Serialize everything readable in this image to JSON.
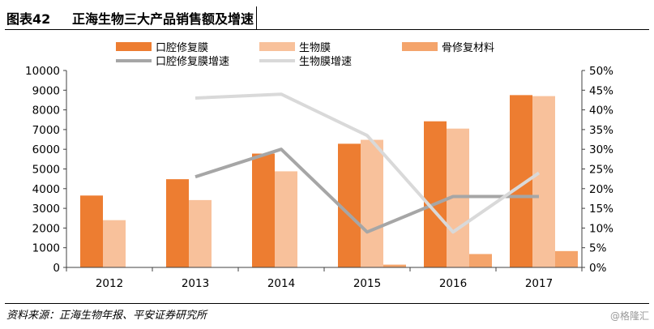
{
  "figure": {
    "number": "图表42",
    "title": "正海生物三大产品销售额及增速",
    "source": "资料来源：正海生物年报、平安证券研究所",
    "watermark": "@格隆汇"
  },
  "colors": {
    "oral_bar": "#ED7D31",
    "bio_bar": "#F8C19B",
    "bone_bar": "#F4A46B",
    "oral_line": "#A6A6A6",
    "bio_line": "#D9D9D9"
  },
  "chart_data": {
    "type": "bar",
    "categories": [
      "2012",
      "2013",
      "2014",
      "2015",
      "2016",
      "2017"
    ],
    "series": [
      {
        "name": "口腔修复膜",
        "kind": "bar",
        "axis": "left",
        "values": [
          3650,
          4480,
          5780,
          6280,
          7420,
          8750
        ]
      },
      {
        "name": "生物膜",
        "kind": "bar",
        "axis": "left",
        "values": [
          2400,
          3420,
          4880,
          6480,
          7050,
          8700
        ]
      },
      {
        "name": "骨修复材料",
        "kind": "bar",
        "axis": "left",
        "values": [
          null,
          null,
          null,
          140,
          680,
          830
        ]
      },
      {
        "name": "口腔修复膜增速",
        "kind": "line",
        "axis": "right",
        "values": [
          null,
          0.23,
          0.3,
          0.09,
          0.18,
          0.18
        ]
      },
      {
        "name": "生物膜增速",
        "kind": "line",
        "axis": "right",
        "values": [
          null,
          0.43,
          0.44,
          0.335,
          0.09,
          0.24
        ]
      }
    ],
    "ylim": [
      0,
      10000
    ],
    "y_ticks": [
      "0",
      "1000",
      "2000",
      "3000",
      "4000",
      "5000",
      "6000",
      "7000",
      "8000",
      "9000",
      "10000"
    ],
    "y2lim": [
      0,
      0.5
    ],
    "y2_ticks": [
      "0%",
      "5%",
      "10%",
      "15%",
      "20%",
      "25%",
      "30%",
      "35%",
      "40%",
      "45%",
      "50%"
    ],
    "legend_position": "top",
    "grid": false
  }
}
